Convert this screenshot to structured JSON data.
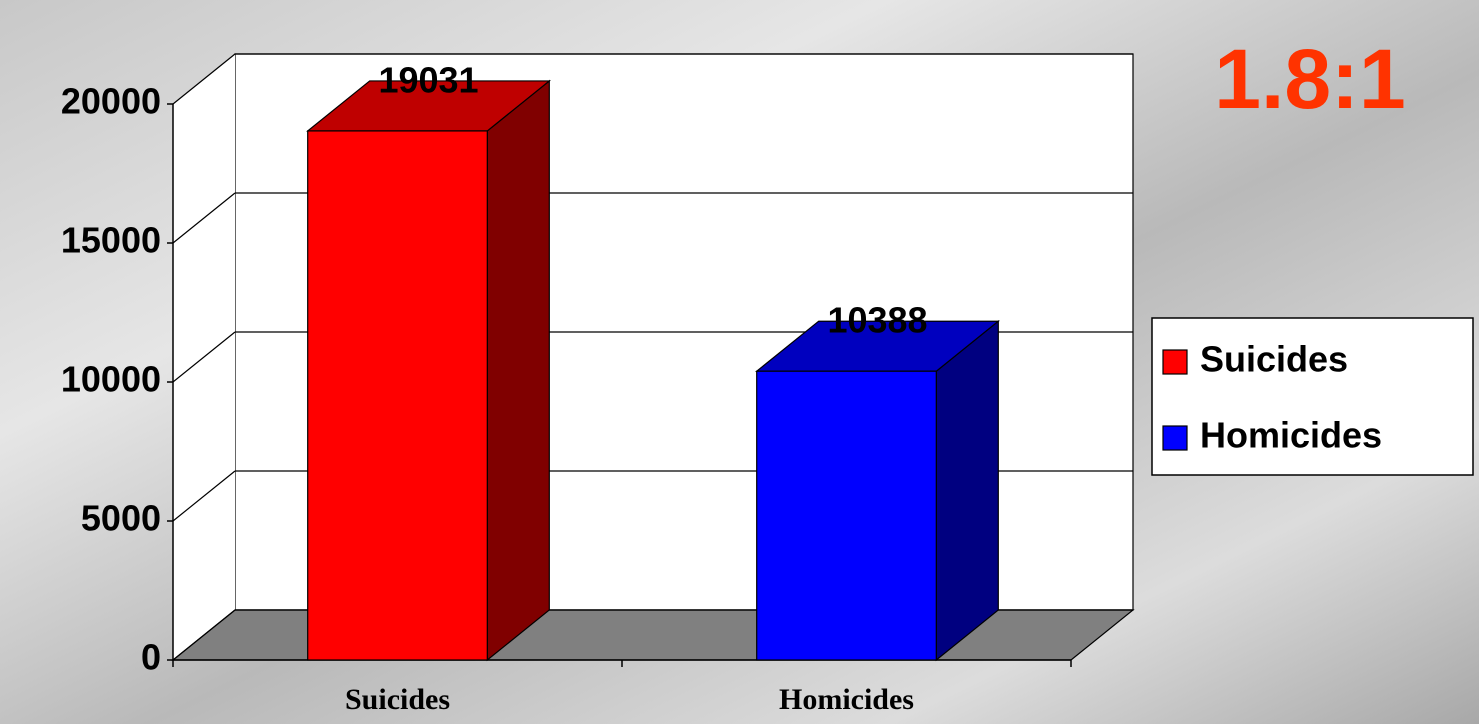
{
  "chart_data": {
    "type": "bar3d",
    "annotation": "1.8:1",
    "categories": [
      "Suicides",
      "Homicides"
    ],
    "series": [
      {
        "name": "Suicides",
        "color": "#ff0000",
        "values": [
          19031,
          null
        ]
      },
      {
        "name": "Homicides",
        "color": "#0000ff",
        "values": [
          null,
          10388
        ]
      }
    ],
    "ylim": [
      0,
      20000
    ],
    "yticks": [
      0,
      5000,
      10000,
      15000,
      20000
    ],
    "grid": true,
    "legend": "right"
  }
}
